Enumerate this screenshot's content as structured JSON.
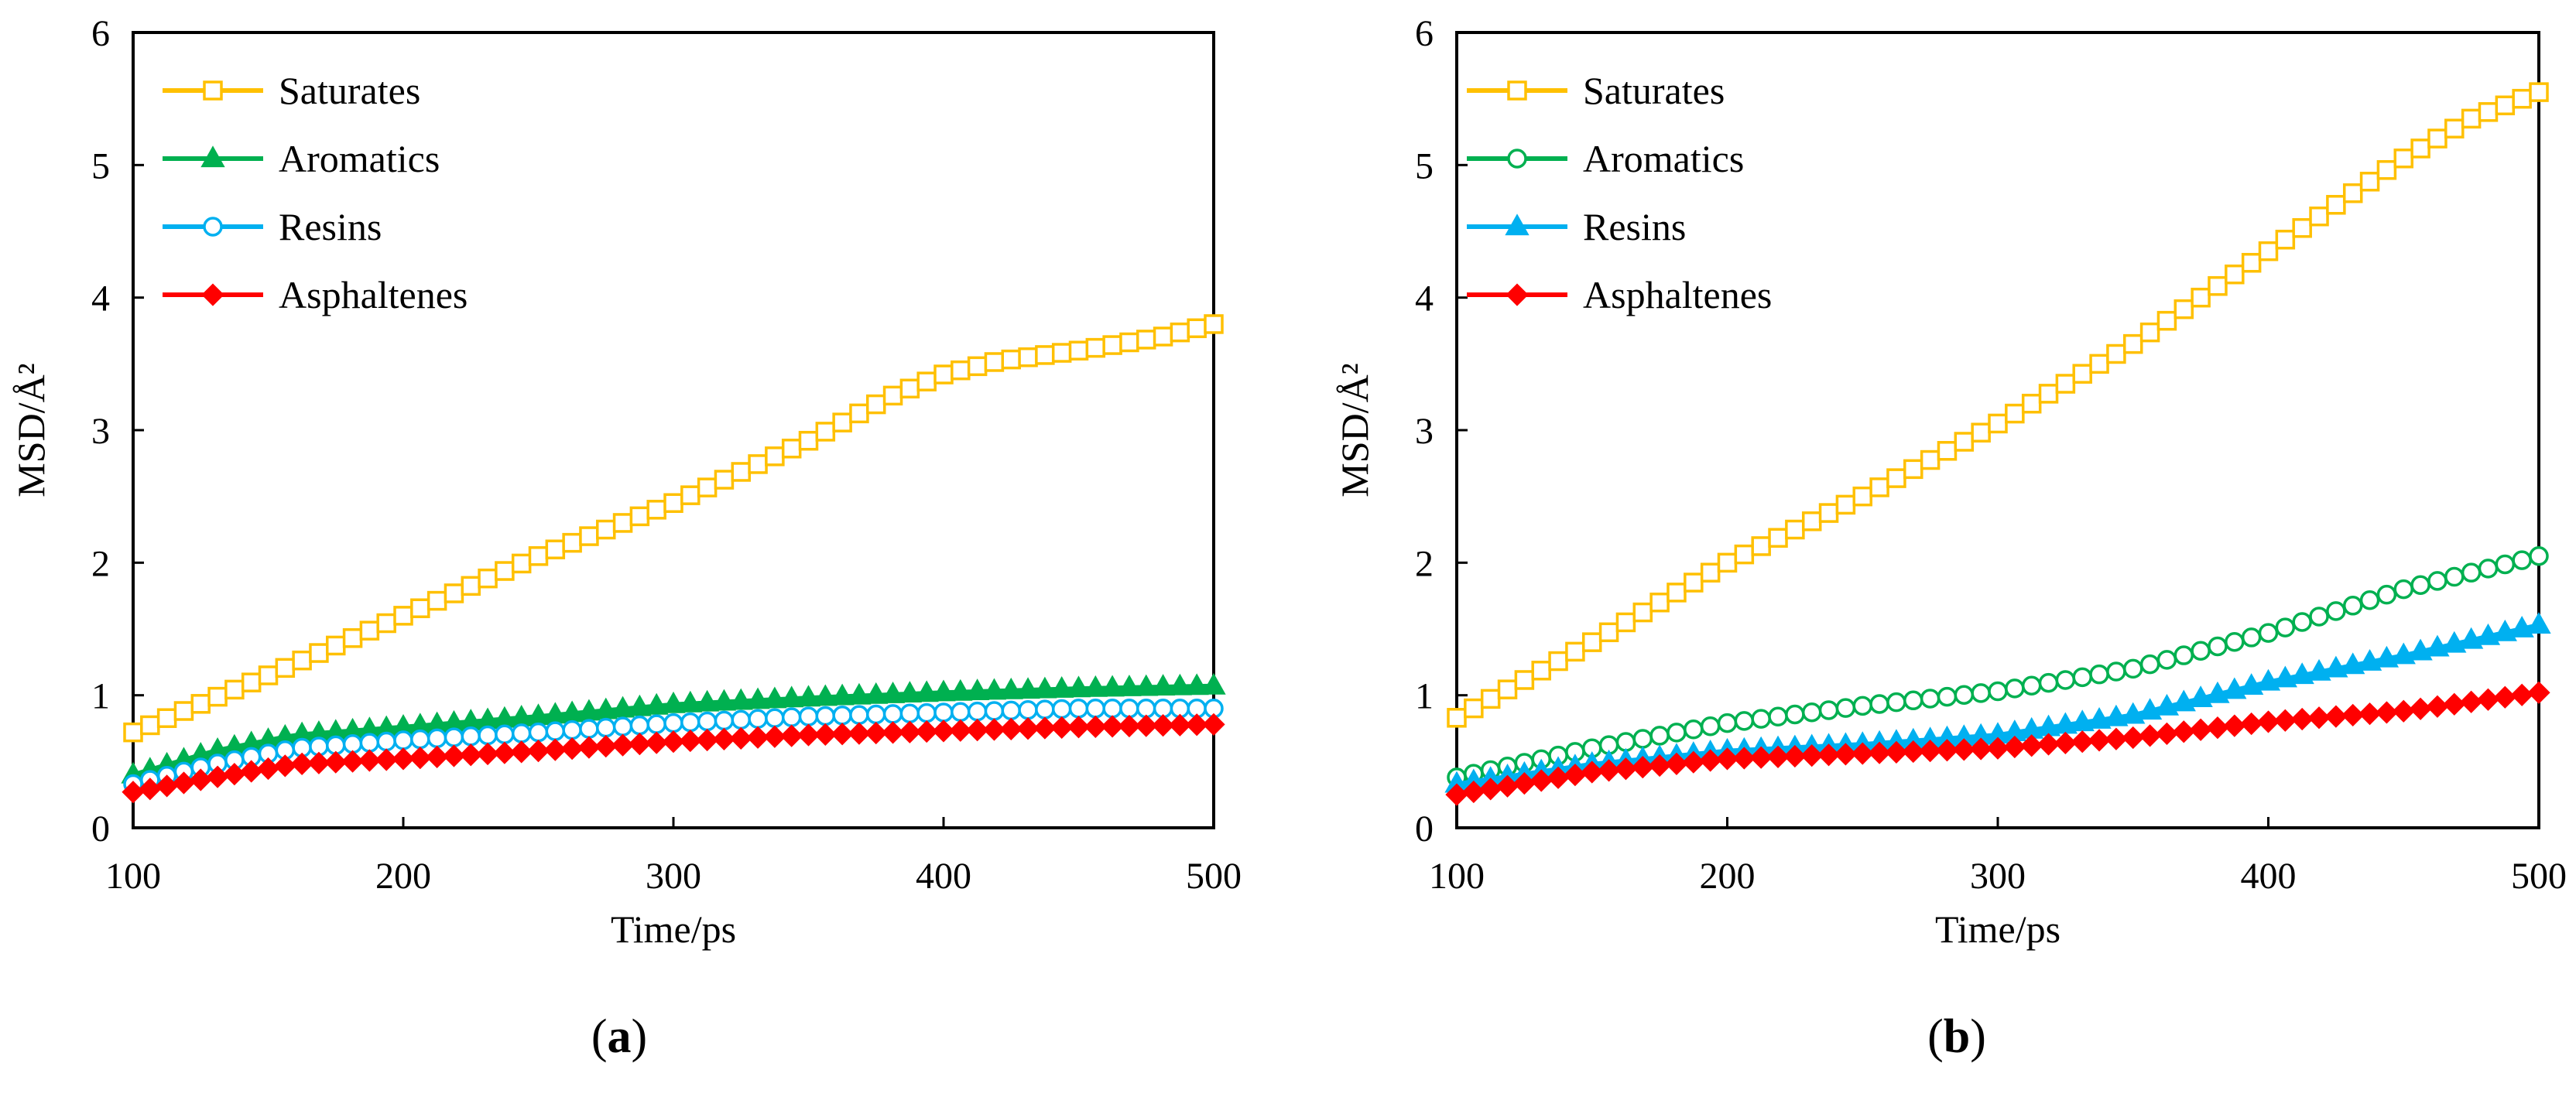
{
  "chart_data": [
    {
      "type": "line",
      "panel_label": "a",
      "xlabel": "Time/ps",
      "ylabel": "MSD/Å²",
      "xlim": [
        100,
        500
      ],
      "ylim": [
        0,
        6
      ],
      "xticks": [
        100,
        200,
        300,
        400,
        500
      ],
      "yticks": [
        0,
        1,
        2,
        3,
        4,
        5,
        6
      ],
      "legend_position": "top-left",
      "grid": false,
      "series": [
        {
          "name": "Saturates",
          "color": "#FFC000",
          "marker": "square",
          "points": [
            [
              100,
              0.72
            ],
            [
              150,
              1.15
            ],
            [
              200,
              1.6
            ],
            [
              250,
              2.05
            ],
            [
              300,
              2.45
            ],
            [
              350,
              2.92
            ],
            [
              380,
              3.25
            ],
            [
              400,
              3.42
            ],
            [
              420,
              3.52
            ],
            [
              450,
              3.6
            ],
            [
              480,
              3.7
            ],
            [
              500,
              3.8
            ]
          ]
        },
        {
          "name": "Aromatics",
          "color": "#00B050",
          "marker": "triangle",
          "points": [
            [
              100,
              0.4
            ],
            [
              130,
              0.58
            ],
            [
              160,
              0.7
            ],
            [
              200,
              0.76
            ],
            [
              250,
              0.84
            ],
            [
              300,
              0.93
            ],
            [
              350,
              0.98
            ],
            [
              400,
              1.02
            ],
            [
              450,
              1.05
            ],
            [
              500,
              1.07
            ]
          ]
        },
        {
          "name": "Resins",
          "color": "#00B0F0",
          "marker": "circle",
          "points": [
            [
              100,
              0.33
            ],
            [
              130,
              0.48
            ],
            [
              160,
              0.6
            ],
            [
              200,
              0.66
            ],
            [
              250,
              0.72
            ],
            [
              300,
              0.79
            ],
            [
              350,
              0.84
            ],
            [
              400,
              0.87
            ],
            [
              450,
              0.9
            ],
            [
              500,
              0.9
            ]
          ]
        },
        {
          "name": "Asphaltenes",
          "color": "#FF0000",
          "marker": "diamond",
          "points": [
            [
              100,
              0.27
            ],
            [
              130,
              0.38
            ],
            [
              160,
              0.48
            ],
            [
              200,
              0.52
            ],
            [
              250,
              0.58
            ],
            [
              300,
              0.65
            ],
            [
              350,
              0.7
            ],
            [
              400,
              0.73
            ],
            [
              450,
              0.76
            ],
            [
              500,
              0.78
            ]
          ]
        }
      ]
    },
    {
      "type": "line",
      "panel_label": "b",
      "xlabel": "Time/ps",
      "ylabel": "MSD/Å²",
      "xlim": [
        100,
        500
      ],
      "ylim": [
        0,
        6
      ],
      "xticks": [
        100,
        200,
        300,
        400,
        500
      ],
      "yticks": [
        0,
        1,
        2,
        3,
        4,
        5,
        6
      ],
      "legend_position": "top-left",
      "grid": false,
      "series": [
        {
          "name": "Saturates",
          "color": "#FFC000",
          "marker": "square",
          "points": [
            [
              100,
              0.83
            ],
            [
              150,
              1.4
            ],
            [
              200,
              2.0
            ],
            [
              250,
              2.5
            ],
            [
              300,
              3.05
            ],
            [
              350,
              3.65
            ],
            [
              400,
              4.35
            ],
            [
              425,
              4.7
            ],
            [
              450,
              5.05
            ],
            [
              475,
              5.35
            ],
            [
              500,
              5.55
            ]
          ]
        },
        {
          "name": "Aromatics",
          "color": "#00B050",
          "marker": "circle",
          "points": [
            [
              100,
              0.38
            ],
            [
              150,
              0.6
            ],
            [
              200,
              0.79
            ],
            [
              250,
              0.92
            ],
            [
              300,
              1.03
            ],
            [
              350,
              1.2
            ],
            [
              400,
              1.47
            ],
            [
              450,
              1.8
            ],
            [
              500,
              2.05
            ]
          ]
        },
        {
          "name": "Resins",
          "color": "#00B0F0",
          "marker": "triangle",
          "points": [
            [
              100,
              0.33
            ],
            [
              150,
              0.48
            ],
            [
              200,
              0.58
            ],
            [
              250,
              0.63
            ],
            [
              300,
              0.7
            ],
            [
              350,
              0.85
            ],
            [
              400,
              1.1
            ],
            [
              450,
              1.3
            ],
            [
              500,
              1.53
            ]
          ]
        },
        {
          "name": "Asphaltenes",
          "color": "#FF0000",
          "marker": "diamond",
          "points": [
            [
              100,
              0.25
            ],
            [
              150,
              0.42
            ],
            [
              200,
              0.52
            ],
            [
              250,
              0.56
            ],
            [
              300,
              0.6
            ],
            [
              350,
              0.68
            ],
            [
              400,
              0.8
            ],
            [
              450,
              0.88
            ],
            [
              500,
              1.02
            ]
          ]
        }
      ]
    }
  ]
}
